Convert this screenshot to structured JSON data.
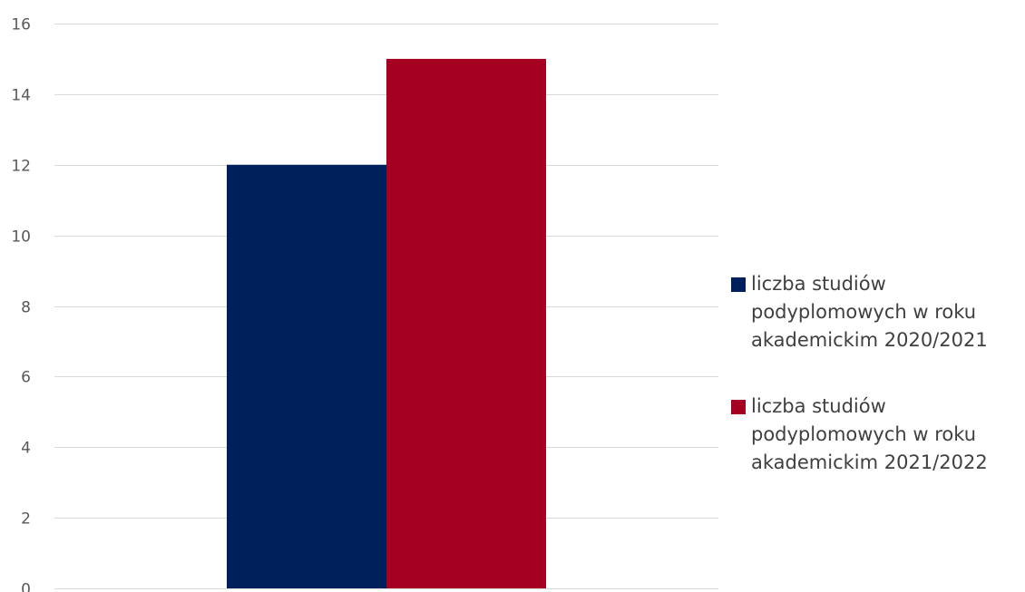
{
  "chart_data": {
    "type": "bar",
    "categories": [
      ""
    ],
    "series": [
      {
        "name": "liczba studiów podyplomowych w roku akademickim 2020/2021",
        "values": [
          12
        ],
        "color": "#00205b"
      },
      {
        "name": "liczba studiów podyplomowych w roku akademickim 2021/2022",
        "values": [
          15
        ],
        "color": "#a50021"
      }
    ],
    "ylim": [
      0,
      16
    ],
    "yticks": [
      0,
      2,
      4,
      6,
      8,
      10,
      12,
      14,
      16
    ],
    "grid": true,
    "legend_position": "right"
  }
}
